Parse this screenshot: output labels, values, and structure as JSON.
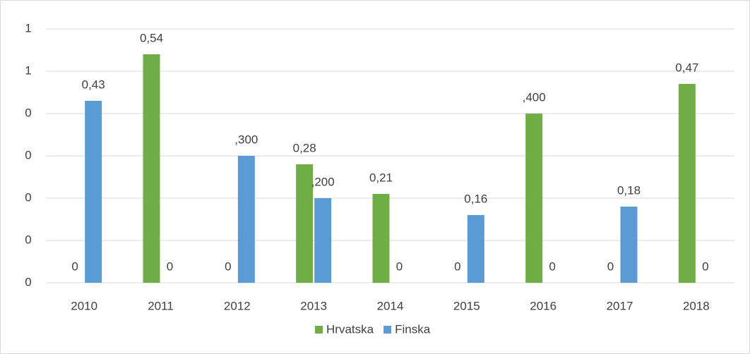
{
  "chart_data": {
    "type": "bar",
    "categories": [
      "2010",
      "2011",
      "2012",
      "2013",
      "2014",
      "2015",
      "2016",
      "2017",
      "2018"
    ],
    "series": [
      {
        "name": "Hrvatska",
        "color": "#70ad47",
        "values": [
          0,
          0.54,
          0,
          0.28,
          0.21,
          0,
          0.4,
          0,
          0.47
        ],
        "value_labels": [
          "0",
          "0,54",
          "0",
          "0,28",
          "0,21",
          "0",
          ",400",
          "0",
          "0,47"
        ]
      },
      {
        "name": "Finska",
        "color": "#5b9bd5",
        "values": [
          0.43,
          0,
          0.3,
          0.2,
          0,
          0.16,
          0,
          0.18,
          0
        ],
        "value_labels": [
          "0,43",
          "0",
          ",300",
          ",200",
          "0",
          "0,16",
          "0",
          "0,18",
          "0"
        ]
      }
    ],
    "ylim": [
      0,
      0.6
    ],
    "yticks": [
      0,
      {
        "value": 0.1,
        "label": "0"
      },
      {
        "value": 0.2,
        "label": "0"
      },
      {
        "value": 0.3,
        "label": "0"
      },
      {
        "value": 0.4,
        "label": "0"
      },
      {
        "value": 0.5,
        "label": "1"
      },
      {
        "value": 0.6,
        "label": "1"
      }
    ],
    "grid": true,
    "legend": "bottom"
  }
}
